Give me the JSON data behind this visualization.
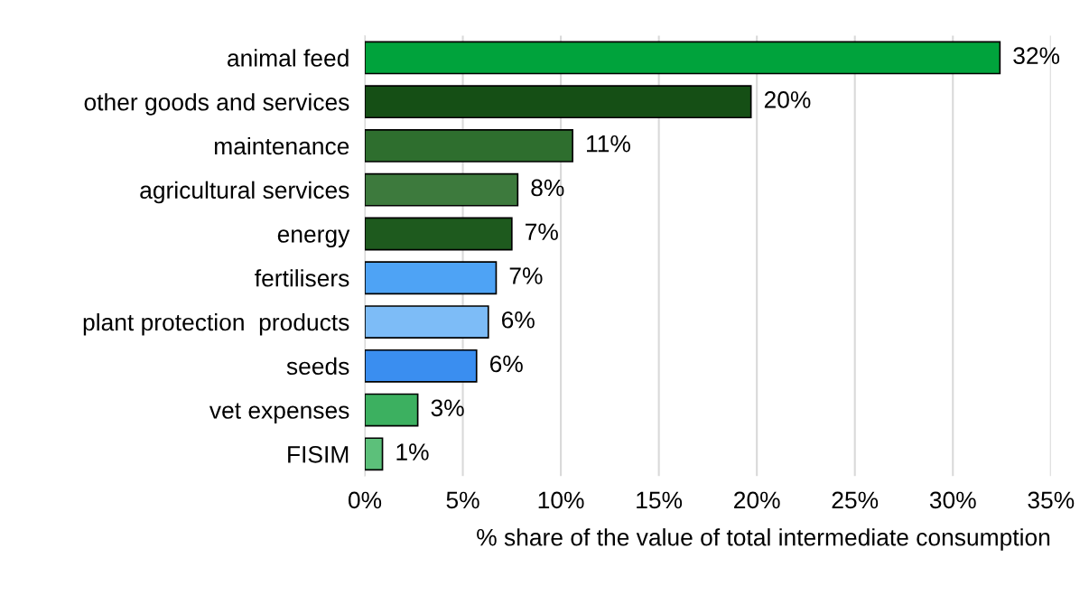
{
  "chart_data": {
    "type": "bar",
    "orientation": "horizontal",
    "xlabel": "% share of the value of total intermediate consumption",
    "categories": [
      "animal feed",
      "other goods and services",
      "maintenance",
      "agricultural services",
      "energy",
      "fertilisers",
      "plant protection  products",
      "seeds",
      "vet expenses",
      "FISIM"
    ],
    "values": [
      32.4,
      19.7,
      10.6,
      7.8,
      7.5,
      6.7,
      6.3,
      5.7,
      2.7,
      0.9
    ],
    "value_labels": [
      "32%",
      "20%",
      "11%",
      "8%",
      "7%",
      "7%",
      "6%",
      "6%",
      "3%",
      "1%"
    ],
    "colors": [
      "#00a33c",
      "#154f15",
      "#2e6e2e",
      "#3d7a3d",
      "#1e5a1e",
      "#4ea3f5",
      "#7dbcf7",
      "#3a8ef0",
      "#3cb060",
      "#5cc07a"
    ],
    "xlim": [
      0,
      35
    ],
    "xticks": [
      {
        "value": 0,
        "label": "0%"
      },
      {
        "value": 5,
        "label": "5%"
      },
      {
        "value": 10,
        "label": "10%"
      },
      {
        "value": 15,
        "label": "15%"
      },
      {
        "value": 20,
        "label": "20%"
      },
      {
        "value": 25,
        "label": "25%"
      },
      {
        "value": 30,
        "label": "30%"
      },
      {
        "value": 35,
        "label": "35%"
      }
    ],
    "grid": "x",
    "legend": false
  }
}
